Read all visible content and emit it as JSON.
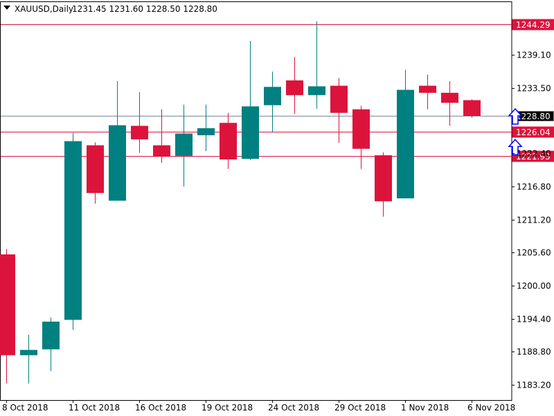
{
  "header": {
    "symbol": "XAUUSD,Daily",
    "ohlc": "1231.45 1231.60 1228.50 1228.80"
  },
  "colors": {
    "bull": "#008080",
    "bear": "#DC143C",
    "hline": "#DC143C",
    "current_line": "#778899",
    "current_tag_bg": "#000000",
    "arrow": "#0000FF",
    "frame": "#000000"
  },
  "icons": {
    "collapse": "triangle-down-icon",
    "arrows": "up-arrow-outline-icon"
  },
  "chart_data": {
    "type": "candlestick",
    "title": "XAUUSD,Daily",
    "ylim": [
      1180.6,
      1248.2
    ],
    "x_tick_labels": [
      {
        "index": 0,
        "label": "8 Oct 2018"
      },
      {
        "index": 3,
        "label": "11 Oct 2018"
      },
      {
        "index": 6,
        "label": "16 Oct 2018"
      },
      {
        "index": 9,
        "label": "19 Oct 2018"
      },
      {
        "index": 12,
        "label": "24 Oct 2018"
      },
      {
        "index": 15,
        "label": "29 Oct 2018"
      },
      {
        "index": 18,
        "label": "1 Nov 2018"
      },
      {
        "index": 21,
        "label": "6 Nov 2018"
      }
    ],
    "y_ticks": [
      "1239.10",
      "1233.50",
      "1222.40",
      "1216.80",
      "1211.20",
      "1205.60",
      "1200.00",
      "1194.40",
      "1188.80",
      "1183.20"
    ],
    "candles": [
      {
        "o": 1205.3,
        "h": 1206.2,
        "l": 1183.4,
        "c": 1188.2
      },
      {
        "o": 1188.2,
        "h": 1191.7,
        "l": 1183.4,
        "c": 1189.1
      },
      {
        "o": 1189.2,
        "h": 1194.6,
        "l": 1185.5,
        "c": 1193.9
      },
      {
        "o": 1194.2,
        "h": 1225.9,
        "l": 1192.5,
        "c": 1224.5
      },
      {
        "o": 1223.8,
        "h": 1224.3,
        "l": 1213.9,
        "c": 1215.7
      },
      {
        "o": 1214.4,
        "h": 1234.7,
        "l": 1214.4,
        "c": 1227.2
      },
      {
        "o": 1227.1,
        "h": 1232.8,
        "l": 1222.5,
        "c": 1224.8
      },
      {
        "o": 1223.8,
        "h": 1229.9,
        "l": 1220.8,
        "c": 1221.9
      },
      {
        "o": 1222.0,
        "h": 1230.7,
        "l": 1216.8,
        "c": 1225.8
      },
      {
        "o": 1225.5,
        "h": 1230.7,
        "l": 1222.8,
        "c": 1226.7
      },
      {
        "o": 1227.6,
        "h": 1229.3,
        "l": 1219.8,
        "c": 1221.4
      },
      {
        "o": 1221.5,
        "h": 1241.5,
        "l": 1221.3,
        "c": 1230.4
      },
      {
        "o": 1230.6,
        "h": 1236.3,
        "l": 1226.0,
        "c": 1233.7
      },
      {
        "o": 1234.8,
        "h": 1238.8,
        "l": 1229.1,
        "c": 1232.3
      },
      {
        "o": 1232.3,
        "h": 1244.8,
        "l": 1230.0,
        "c": 1233.8
      },
      {
        "o": 1233.9,
        "h": 1235.2,
        "l": 1224.2,
        "c": 1229.3
      },
      {
        "o": 1229.9,
        "h": 1230.5,
        "l": 1219.8,
        "c": 1223.2
      },
      {
        "o": 1222.1,
        "h": 1222.6,
        "l": 1211.7,
        "c": 1214.3
      },
      {
        "o": 1214.8,
        "h": 1236.6,
        "l": 1214.8,
        "c": 1233.2
      },
      {
        "o": 1233.9,
        "h": 1235.8,
        "l": 1229.9,
        "c": 1232.7
      },
      {
        "o": 1232.7,
        "h": 1234.7,
        "l": 1227.1,
        "c": 1231.0
      },
      {
        "o": 1231.45,
        "h": 1231.6,
        "l": 1228.5,
        "c": 1228.8
      }
    ],
    "horizontal_lines": [
      {
        "price": 1244.29,
        "label": "1244.29",
        "kind": "level"
      },
      {
        "price": 1226.04,
        "label": "1226.04",
        "kind": "level"
      },
      {
        "price": 1221.93,
        "label": "1221.93",
        "kind": "level"
      },
      {
        "price": 1228.8,
        "label": "1228.80",
        "kind": "current"
      }
    ],
    "arrows": [
      {
        "index": 23,
        "price": 1228.8
      },
      {
        "index": 23,
        "price": 1223.6
      }
    ]
  }
}
